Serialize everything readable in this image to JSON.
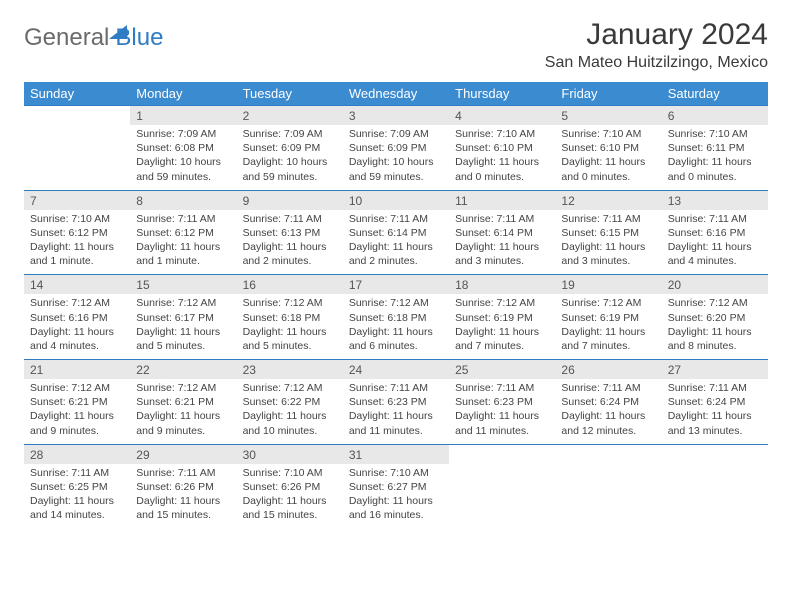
{
  "brand": {
    "part1": "General",
    "part2": "Blue"
  },
  "title": "January 2024",
  "location": "San Mateo Huitzilzingo, Mexico",
  "colors": {
    "header_bg": "#3b8bd0",
    "header_text": "#ffffff",
    "daynum_bg": "#e8e8e8",
    "border": "#2f7bc4",
    "body_text": "#444444",
    "title_text": "#3a3a3a"
  },
  "weekdays": [
    "Sunday",
    "Monday",
    "Tuesday",
    "Wednesday",
    "Thursday",
    "Friday",
    "Saturday"
  ],
  "weeks": [
    [
      null,
      {
        "n": "1",
        "sr": "Sunrise: 7:09 AM",
        "ss": "Sunset: 6:08 PM",
        "d1": "Daylight: 10 hours",
        "d2": "and 59 minutes."
      },
      {
        "n": "2",
        "sr": "Sunrise: 7:09 AM",
        "ss": "Sunset: 6:09 PM",
        "d1": "Daylight: 10 hours",
        "d2": "and 59 minutes."
      },
      {
        "n": "3",
        "sr": "Sunrise: 7:09 AM",
        "ss": "Sunset: 6:09 PM",
        "d1": "Daylight: 10 hours",
        "d2": "and 59 minutes."
      },
      {
        "n": "4",
        "sr": "Sunrise: 7:10 AM",
        "ss": "Sunset: 6:10 PM",
        "d1": "Daylight: 11 hours",
        "d2": "and 0 minutes."
      },
      {
        "n": "5",
        "sr": "Sunrise: 7:10 AM",
        "ss": "Sunset: 6:10 PM",
        "d1": "Daylight: 11 hours",
        "d2": "and 0 minutes."
      },
      {
        "n": "6",
        "sr": "Sunrise: 7:10 AM",
        "ss": "Sunset: 6:11 PM",
        "d1": "Daylight: 11 hours",
        "d2": "and 0 minutes."
      }
    ],
    [
      {
        "n": "7",
        "sr": "Sunrise: 7:10 AM",
        "ss": "Sunset: 6:12 PM",
        "d1": "Daylight: 11 hours",
        "d2": "and 1 minute."
      },
      {
        "n": "8",
        "sr": "Sunrise: 7:11 AM",
        "ss": "Sunset: 6:12 PM",
        "d1": "Daylight: 11 hours",
        "d2": "and 1 minute."
      },
      {
        "n": "9",
        "sr": "Sunrise: 7:11 AM",
        "ss": "Sunset: 6:13 PM",
        "d1": "Daylight: 11 hours",
        "d2": "and 2 minutes."
      },
      {
        "n": "10",
        "sr": "Sunrise: 7:11 AM",
        "ss": "Sunset: 6:14 PM",
        "d1": "Daylight: 11 hours",
        "d2": "and 2 minutes."
      },
      {
        "n": "11",
        "sr": "Sunrise: 7:11 AM",
        "ss": "Sunset: 6:14 PM",
        "d1": "Daylight: 11 hours",
        "d2": "and 3 minutes."
      },
      {
        "n": "12",
        "sr": "Sunrise: 7:11 AM",
        "ss": "Sunset: 6:15 PM",
        "d1": "Daylight: 11 hours",
        "d2": "and 3 minutes."
      },
      {
        "n": "13",
        "sr": "Sunrise: 7:11 AM",
        "ss": "Sunset: 6:16 PM",
        "d1": "Daylight: 11 hours",
        "d2": "and 4 minutes."
      }
    ],
    [
      {
        "n": "14",
        "sr": "Sunrise: 7:12 AM",
        "ss": "Sunset: 6:16 PM",
        "d1": "Daylight: 11 hours",
        "d2": "and 4 minutes."
      },
      {
        "n": "15",
        "sr": "Sunrise: 7:12 AM",
        "ss": "Sunset: 6:17 PM",
        "d1": "Daylight: 11 hours",
        "d2": "and 5 minutes."
      },
      {
        "n": "16",
        "sr": "Sunrise: 7:12 AM",
        "ss": "Sunset: 6:18 PM",
        "d1": "Daylight: 11 hours",
        "d2": "and 5 minutes."
      },
      {
        "n": "17",
        "sr": "Sunrise: 7:12 AM",
        "ss": "Sunset: 6:18 PM",
        "d1": "Daylight: 11 hours",
        "d2": "and 6 minutes."
      },
      {
        "n": "18",
        "sr": "Sunrise: 7:12 AM",
        "ss": "Sunset: 6:19 PM",
        "d1": "Daylight: 11 hours",
        "d2": "and 7 minutes."
      },
      {
        "n": "19",
        "sr": "Sunrise: 7:12 AM",
        "ss": "Sunset: 6:19 PM",
        "d1": "Daylight: 11 hours",
        "d2": "and 7 minutes."
      },
      {
        "n": "20",
        "sr": "Sunrise: 7:12 AM",
        "ss": "Sunset: 6:20 PM",
        "d1": "Daylight: 11 hours",
        "d2": "and 8 minutes."
      }
    ],
    [
      {
        "n": "21",
        "sr": "Sunrise: 7:12 AM",
        "ss": "Sunset: 6:21 PM",
        "d1": "Daylight: 11 hours",
        "d2": "and 9 minutes."
      },
      {
        "n": "22",
        "sr": "Sunrise: 7:12 AM",
        "ss": "Sunset: 6:21 PM",
        "d1": "Daylight: 11 hours",
        "d2": "and 9 minutes."
      },
      {
        "n": "23",
        "sr": "Sunrise: 7:12 AM",
        "ss": "Sunset: 6:22 PM",
        "d1": "Daylight: 11 hours",
        "d2": "and 10 minutes."
      },
      {
        "n": "24",
        "sr": "Sunrise: 7:11 AM",
        "ss": "Sunset: 6:23 PM",
        "d1": "Daylight: 11 hours",
        "d2": "and 11 minutes."
      },
      {
        "n": "25",
        "sr": "Sunrise: 7:11 AM",
        "ss": "Sunset: 6:23 PM",
        "d1": "Daylight: 11 hours",
        "d2": "and 11 minutes."
      },
      {
        "n": "26",
        "sr": "Sunrise: 7:11 AM",
        "ss": "Sunset: 6:24 PM",
        "d1": "Daylight: 11 hours",
        "d2": "and 12 minutes."
      },
      {
        "n": "27",
        "sr": "Sunrise: 7:11 AM",
        "ss": "Sunset: 6:24 PM",
        "d1": "Daylight: 11 hours",
        "d2": "and 13 minutes."
      }
    ],
    [
      {
        "n": "28",
        "sr": "Sunrise: 7:11 AM",
        "ss": "Sunset: 6:25 PM",
        "d1": "Daylight: 11 hours",
        "d2": "and 14 minutes."
      },
      {
        "n": "29",
        "sr": "Sunrise: 7:11 AM",
        "ss": "Sunset: 6:26 PM",
        "d1": "Daylight: 11 hours",
        "d2": "and 15 minutes."
      },
      {
        "n": "30",
        "sr": "Sunrise: 7:10 AM",
        "ss": "Sunset: 6:26 PM",
        "d1": "Daylight: 11 hours",
        "d2": "and 15 minutes."
      },
      {
        "n": "31",
        "sr": "Sunrise: 7:10 AM",
        "ss": "Sunset: 6:27 PM",
        "d1": "Daylight: 11 hours",
        "d2": "and 16 minutes."
      },
      null,
      null,
      null
    ]
  ]
}
